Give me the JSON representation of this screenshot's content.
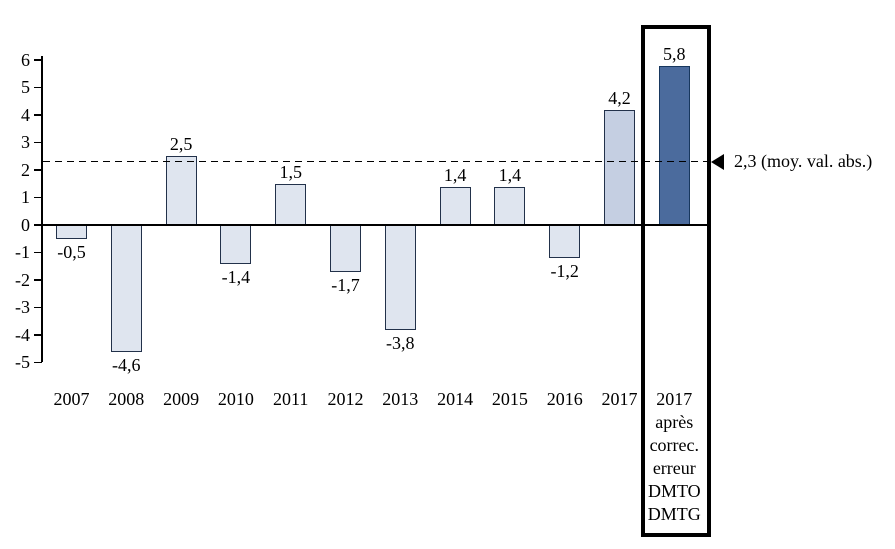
{
  "chart_data": {
    "type": "bar",
    "title": "",
    "categories": [
      "2007",
      "2008",
      "2009",
      "2010",
      "2011",
      "2012",
      "2013",
      "2014",
      "2015",
      "2016",
      "2017",
      "2017 après correc. erreur DMTO DMTG"
    ],
    "values": [
      -0.5,
      -4.6,
      2.5,
      -1.4,
      1.5,
      -1.7,
      -3.8,
      1.4,
      1.4,
      -1.2,
      4.2,
      5.8
    ],
    "value_labels": [
      "-0,5",
      "-4,6",
      "2,5",
      "-1,4",
      "1,5",
      "-1,7",
      "-3,8",
      "1,4",
      "1,4",
      "-1,2",
      "4,2",
      "5,8"
    ],
    "x_tick_labels": [
      [
        "2007"
      ],
      [
        "2008"
      ],
      [
        "2009"
      ],
      [
        "2010"
      ],
      [
        "2011"
      ],
      [
        "2012"
      ],
      [
        "2013"
      ],
      [
        "2014"
      ],
      [
        "2015"
      ],
      [
        "2016"
      ],
      [
        "2017"
      ],
      [
        "2017",
        "après",
        "correc.",
        "erreur",
        "DMTO",
        "DMTG"
      ]
    ],
    "y_ticks": [
      "6",
      "5",
      "4",
      "3",
      "2",
      "1",
      "0",
      "-1",
      "-2",
      "-3",
      "-4",
      "-5"
    ],
    "ylim": [
      -5,
      6
    ],
    "grid": false,
    "legend": false,
    "decimal_separator": ",",
    "reference_line": {
      "value": 2.3,
      "label": "2,3 (moy. val. abs.)",
      "style": "dashed",
      "marker": "left-filled-triangle"
    },
    "highlight": {
      "category_index": 11,
      "box": true
    },
    "bar_styles": [
      "default",
      "default",
      "default",
      "default",
      "default",
      "default",
      "default",
      "default",
      "default",
      "default",
      "current",
      "corrected"
    ],
    "colors": {
      "bar_default": "#dfe5ef",
      "bar_current": "#c5cfe2",
      "bar_corrected": "#4b6b9d",
      "bar_border": "#22314a",
      "bar_corrected_border": "#17375e",
      "axis": "#000000",
      "reference": "#000000",
      "box_border": "#000000",
      "text": "#000000"
    }
  }
}
